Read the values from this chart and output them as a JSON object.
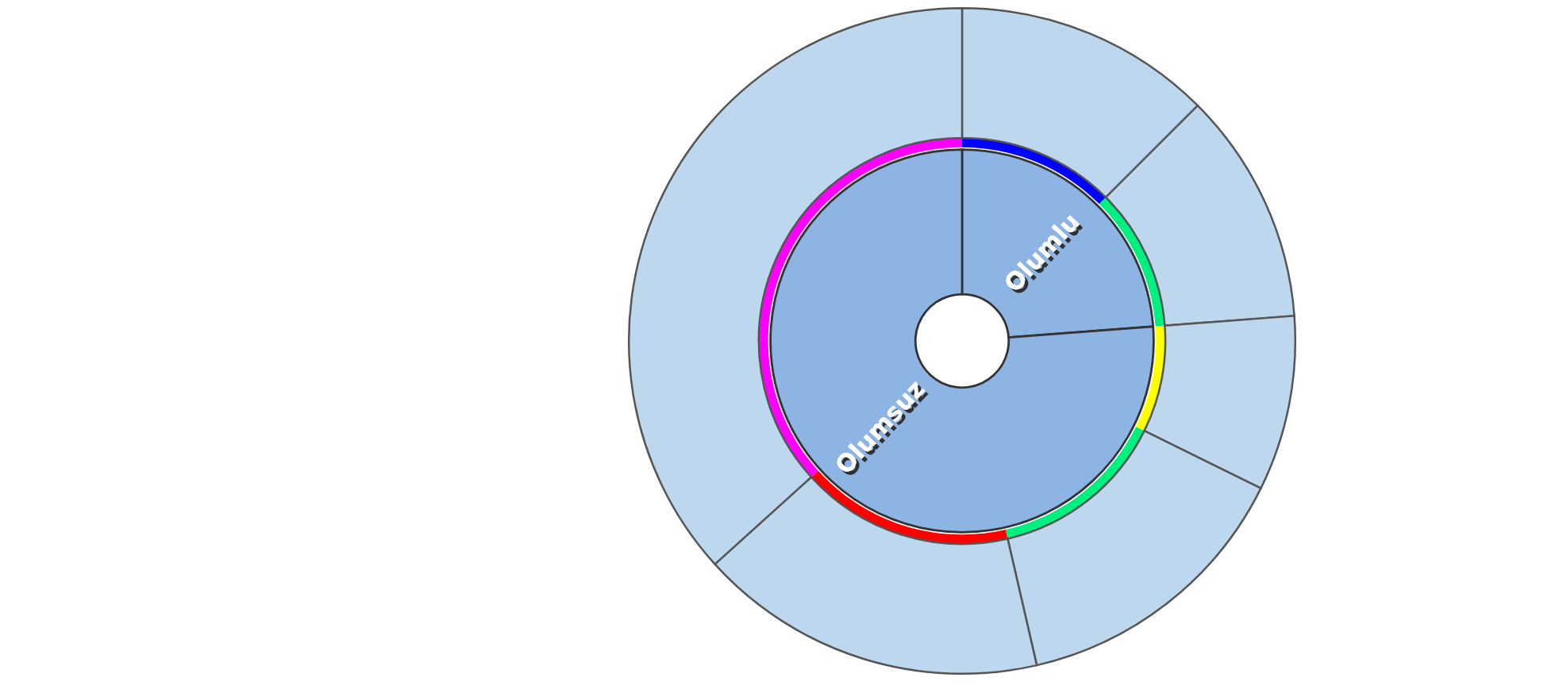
{
  "chart_data": {
    "type": "donut",
    "annotations": [
      "Olumlu",
      "Olumsuz"
    ],
    "series": [
      {
        "values": [
          23.8,
          76.2
        ],
        "colors": [
          "#8db4e2",
          "#8db4e2"
        ]
      },
      {
        "values": [
          12.5,
          11.3,
          8.5,
          14.1,
          16.9,
          36.7
        ],
        "colors": [
          "#0000ff",
          "#00f080",
          "#ffff00",
          "#00f080",
          "#ff0000",
          "#ff00ff"
        ]
      },
      {
        "values": [
          12.5,
          11.3,
          8.5,
          14.1,
          16.9,
          36.7
        ],
        "colors": [
          "#bdd7ee",
          "#bdd7ee",
          "#bdd7ee",
          "#bdd7ee",
          "#bdd7ee",
          "#bdd7ee"
        ]
      }
    ]
  }
}
